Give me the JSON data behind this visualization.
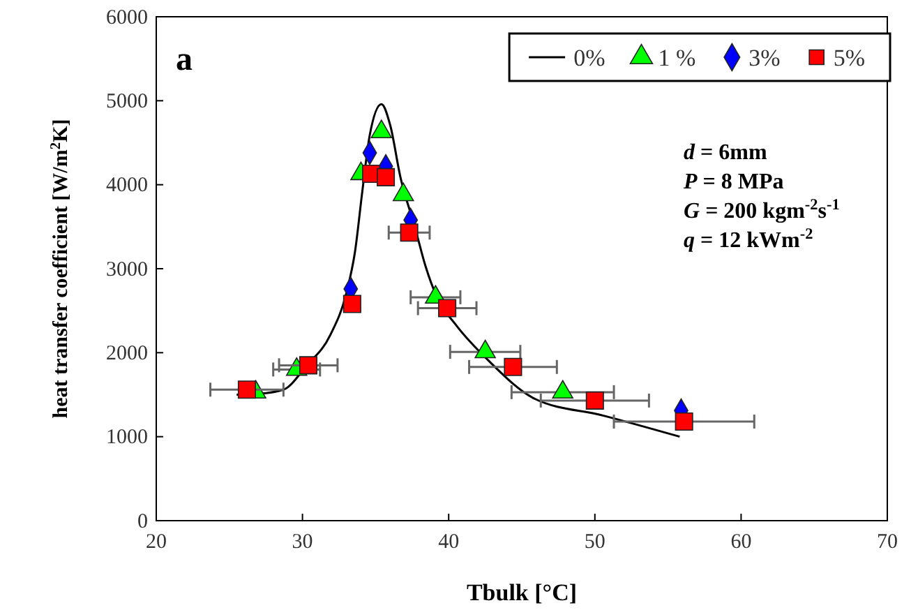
{
  "chart_data": {
    "type": "scatter",
    "xlabel": "Tbulk [°C]",
    "ylabel": "heat transfer coefficient [W/m$^{2}$K]",
    "xlim": [
      20,
      70
    ],
    "xticks": [
      20,
      30,
      40,
      50,
      60,
      70
    ],
    "ylim": [
      0,
      6000
    ],
    "yticks": [
      0,
      1000,
      2000,
      3000,
      4000,
      5000,
      6000
    ],
    "grid": false,
    "legend": "top right",
    "annotations": [
      "a",
      "d = 6mm",
      "P = 8 MPa",
      "G = 200 kgm$^{-2}$s$^{-1}$",
      "q = 12 kWm$^{-2}$"
    ],
    "series": [
      {
        "name": "0%",
        "type": "line",
        "color": "#000000",
        "line_style": "solid",
        "x": [
          25.5,
          27,
          28.7,
          30.3,
          31.9,
          33.0,
          33.6,
          34.1,
          34.6,
          35.4,
          36.0,
          36.7,
          37.7,
          38.4,
          39.2,
          40.5,
          42.7,
          45.9,
          50.6,
          55.8
        ],
        "values": [
          1500,
          1510,
          1560,
          1850,
          2210,
          2710,
          3210,
          3930,
          4590,
          4960,
          4710,
          4090,
          3490,
          3040,
          2660,
          2330,
          1910,
          1450,
          1250,
          1000
        ]
      },
      {
        "name": "1 %",
        "color": "#00ff00",
        "marker": "triangle",
        "x": [
          26.8,
          29.6,
          34.0,
          35.4,
          36.9,
          39.1,
          42.5,
          47.8
        ],
        "values": [
          1530,
          1800,
          4130,
          4630,
          3880,
          2660,
          2010,
          1530
        ],
        "xerrors": [
          null,
          1.6,
          null,
          null,
          null,
          1.7,
          2.4,
          3.5
        ]
      },
      {
        "name": "3%",
        "color": "#0000ff",
        "marker": "diamond",
        "x": [
          33.3,
          34.6,
          35.7,
          37.4,
          55.9
        ],
        "values": [
          2760,
          4380,
          4220,
          3580,
          1310
        ],
        "xerrors": [
          null,
          null,
          null,
          null,
          null
        ]
      },
      {
        "name": "5%",
        "color": "#ff0000",
        "marker": "square",
        "x": [
          26.2,
          30.4,
          33.4,
          34.7,
          35.7,
          37.3,
          39.9,
          44.4,
          50.0,
          56.1
        ],
        "values": [
          1560,
          1850,
          2580,
          4130,
          4090,
          3430,
          2530,
          1830,
          1430,
          1180
        ],
        "xerrors": [
          2.5,
          2,
          null,
          null,
          null,
          1.4,
          2,
          3,
          3.7,
          4.8
        ]
      }
    ]
  }
}
